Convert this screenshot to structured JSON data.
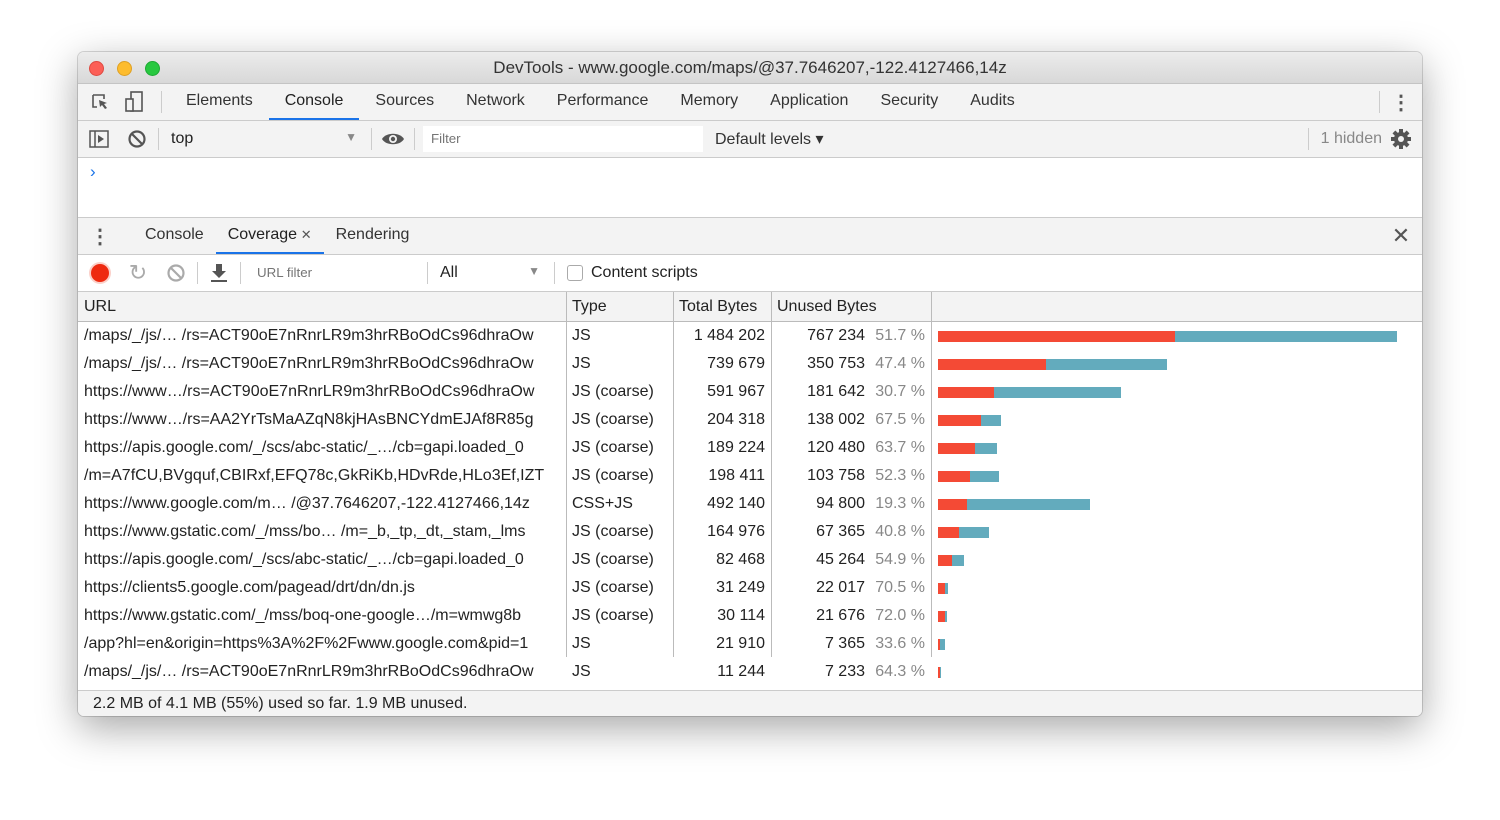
{
  "window": {
    "title": "DevTools - www.google.com/maps/@37.7646207,-122.4127466,14z"
  },
  "main_tabs": [
    "Elements",
    "Console",
    "Sources",
    "Network",
    "Performance",
    "Memory",
    "Application",
    "Security",
    "Audits"
  ],
  "active_main_tab": "Console",
  "console_toolbar": {
    "context": "top",
    "filter_placeholder": "Filter",
    "levels": "Default levels ▾",
    "hidden": "1 hidden"
  },
  "drawer": {
    "tabs": [
      "Console",
      "Coverage",
      "Rendering"
    ],
    "active": "Coverage"
  },
  "coverage_toolbar": {
    "url_filter_placeholder": "URL filter",
    "type_select": "All",
    "content_scripts": "Content scripts",
    "content_scripts_checked": false
  },
  "table": {
    "headers": [
      "URL",
      "Type",
      "Total Bytes",
      "Unused Bytes"
    ],
    "rows": [
      {
        "url": "/maps/_/js/…  /rs=ACT90oE7nRnrLR9m3hrRBoOdCs96dhraOw",
        "type": "JS",
        "total": "1 484 202",
        "unused": "767 234",
        "pct": "51.7 %",
        "total_n": 1484202,
        "unused_n": 767234
      },
      {
        "url": "/maps/_/js/…  /rs=ACT90oE7nRnrLR9m3hrRBoOdCs96dhraOw",
        "type": "JS",
        "total": "739 679",
        "unused": "350 753",
        "pct": "47.4 %",
        "total_n": 739679,
        "unused_n": 350753
      },
      {
        "url": "https://www…/rs=ACT90oE7nRnrLR9m3hrRBoOdCs96dhraOw",
        "type": "JS (coarse)",
        "total": "591 967",
        "unused": "181 642",
        "pct": "30.7 %",
        "total_n": 591967,
        "unused_n": 181642
      },
      {
        "url": "https://www…/rs=AA2YrTsMaAZqN8kjHAsBNCYdmEJAf8R85g",
        "type": "JS (coarse)",
        "total": "204 318",
        "unused": "138 002",
        "pct": "67.5 %",
        "total_n": 204318,
        "unused_n": 138002
      },
      {
        "url": "https://apis.google.com/_/scs/abc-static/_…/cb=gapi.loaded_0",
        "type": "JS (coarse)",
        "total": "189 224",
        "unused": "120 480",
        "pct": "63.7 %",
        "total_n": 189224,
        "unused_n": 120480
      },
      {
        "url": "/m=A7fCU,BVgquf,CBIRxf,EFQ78c,GkRiKb,HDvRde,HLo3Ef,IZT",
        "type": "JS (coarse)",
        "total": "198 411",
        "unused": "103 758",
        "pct": "52.3 %",
        "total_n": 198411,
        "unused_n": 103758
      },
      {
        "url": "https://www.google.com/m…  /@37.7646207,-122.4127466,14z",
        "type": "CSS+JS",
        "total": "492 140",
        "unused": "94 800",
        "pct": "19.3 %",
        "total_n": 492140,
        "unused_n": 94800
      },
      {
        "url": "https://www.gstatic.com/_/mss/bo…  /m=_b,_tp,_dt,_stam,_lms",
        "type": "JS (coarse)",
        "total": "164 976",
        "unused": "67 365",
        "pct": "40.8 %",
        "total_n": 164976,
        "unused_n": 67365
      },
      {
        "url": "https://apis.google.com/_/scs/abc-static/_…/cb=gapi.loaded_0",
        "type": "JS (coarse)",
        "total": "82 468",
        "unused": "45 264",
        "pct": "54.9 %",
        "total_n": 82468,
        "unused_n": 45264
      },
      {
        "url": "https://clients5.google.com/pagead/drt/dn/dn.js",
        "type": "JS (coarse)",
        "total": "31 249",
        "unused": "22 017",
        "pct": "70.5 %",
        "total_n": 31249,
        "unused_n": 22017
      },
      {
        "url": "https://www.gstatic.com/_/mss/boq-one-google…/m=wmwg8b",
        "type": "JS (coarse)",
        "total": "30 114",
        "unused": "21 676",
        "pct": "72.0 %",
        "total_n": 30114,
        "unused_n": 21676
      },
      {
        "url": "/app?hl=en&origin=https%3A%2F%2Fwww.google.com&pid=1",
        "type": "JS",
        "total": "21 910",
        "unused": "7 365",
        "pct": "33.6 %",
        "total_n": 21910,
        "unused_n": 7365
      },
      {
        "url": "/maps/_/js/…  /rs=ACT90oE7nRnrLR9m3hrRBoOdCs96dhraOw",
        "type": "JS",
        "total": "11 244",
        "unused": "7 233",
        "pct": "64.3 %",
        "total_n": 11244,
        "unused_n": 7233
      }
    ]
  },
  "footer": "2.2 MB of 4.1 MB (55%) used so far. 1.9 MB unused.",
  "colors": {
    "unused": "#f44a35",
    "used": "#63abbd",
    "accent": "#1a73e8",
    "record": "#ee2a10"
  }
}
